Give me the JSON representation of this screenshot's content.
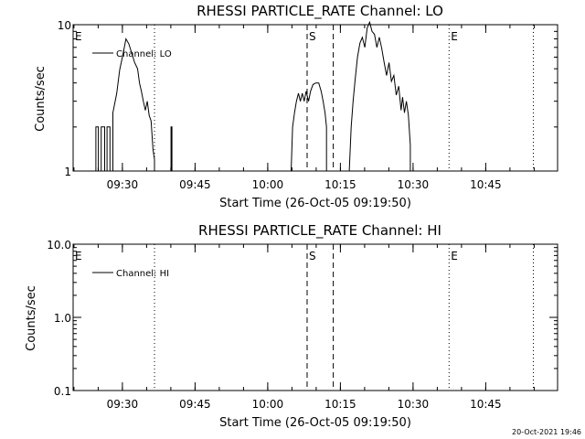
{
  "footer": {
    "timestamp": "20-Oct-2021 19:46"
  },
  "chart_data": [
    {
      "type": "line",
      "title": "RHESSI PARTICLE_RATE Channel: LO",
      "xlabel": "Start Time (26-Oct-05 09:19:50)",
      "ylabel": "Counts/sec",
      "y_scale": "log",
      "ylim": [
        1,
        10
      ],
      "y_ticks": [
        1,
        10
      ],
      "y_tick_labels": [
        "1",
        "10"
      ],
      "x_unit": "minutes after 09:19:50",
      "xlim": [
        0,
        100
      ],
      "x_ticks": [
        10.17,
        25.17,
        40.17,
        55.17,
        70.17,
        85.17
      ],
      "x_tick_labels": [
        "09:30",
        "09:45",
        "10:00",
        "10:15",
        "10:30",
        "10:45"
      ],
      "legend": {
        "entries": [
          "Channel: LO"
        ],
        "placement": "top-left"
      },
      "markers": [
        {
          "label": "E",
          "x": 0,
          "style": "dotted"
        },
        {
          "label": "",
          "x": 16.8,
          "style": "dotted"
        },
        {
          "label": "S",
          "x": 48.3,
          "style": "dashed"
        },
        {
          "label": "",
          "x": 53.7,
          "style": "dashed"
        },
        {
          "label": "E",
          "x": 77.6,
          "style": "dotted"
        },
        {
          "label": "",
          "x": 95.0,
          "style": "dotted"
        }
      ],
      "series": [
        {
          "name": "Channel: LO",
          "x": [
            4.7,
            4.7,
            5.2,
            5.2,
            5.8,
            5.8,
            6.5,
            6.5,
            7.0,
            7.0,
            7.6,
            7.6,
            8.2,
            8.2,
            9.0,
            9.6,
            10.3,
            10.9,
            11.5,
            12.1,
            12.7,
            13.3,
            13.7,
            14.1,
            14.5,
            14.9,
            15.3,
            15.7,
            16.1,
            16.5,
            16.8,
            16.8,
            20.2,
            20.2,
            20.4,
            20.4,
            45.0,
            45.3,
            45.7,
            46.1,
            46.5,
            46.9,
            47.3,
            47.7,
            48.1,
            48.6,
            49.0,
            49.5,
            50.1,
            50.7,
            51.2,
            51.6,
            52.0,
            52.3,
            52.3,
            57.0,
            57.4,
            57.8,
            58.2,
            58.7,
            59.2,
            59.7,
            60.2,
            60.7,
            61.2,
            61.7,
            62.2,
            62.7,
            63.2,
            63.7,
            64.2,
            64.7,
            65.2,
            65.7,
            66.2,
            66.7,
            67.2,
            67.7,
            68.0,
            68.4,
            68.8,
            69.2,
            69.6,
            69.6
          ],
          "values": [
            1,
            2,
            2,
            1,
            1,
            2,
            2,
            1,
            1,
            2,
            2,
            1,
            1,
            2.5,
            3.4,
            4.9,
            6.3,
            8.0,
            7.4,
            6.4,
            5.5,
            5.0,
            4.0,
            3.5,
            3.0,
            2.6,
            3.0,
            2.4,
            2.2,
            1.4,
            1.2,
            1,
            1,
            2,
            2,
            1,
            1,
            2.0,
            2.5,
            3.0,
            3.4,
            3.0,
            3.4,
            3.0,
            3.5,
            3.0,
            3.5,
            3.9,
            4.0,
            4.0,
            3.5,
            3.0,
            2.5,
            2.0,
            1,
            1,
            2.0,
            3.0,
            4.2,
            6.0,
            7.5,
            8.2,
            7.0,
            9.5,
            10.4,
            9.0,
            8.6,
            7.0,
            8.2,
            6.9,
            5.5,
            4.5,
            5.5,
            4.1,
            4.5,
            3.3,
            3.8,
            2.6,
            3.2,
            2.5,
            3.0,
            2.4,
            1.5,
            1
          ]
        }
      ]
    },
    {
      "type": "line",
      "title": "RHESSI PARTICLE_RATE Channel: HI",
      "xlabel": "Start Time (26-Oct-05 09:19:50)",
      "ylabel": "Counts/sec",
      "y_scale": "log",
      "ylim": [
        0.1,
        10
      ],
      "y_ticks": [
        0.1,
        1,
        10
      ],
      "y_tick_labels": [
        "0.1",
        "1.0",
        "10.0"
      ],
      "x_unit": "minutes after 09:19:50",
      "xlim": [
        0,
        100
      ],
      "x_ticks": [
        10.17,
        25.17,
        40.17,
        55.17,
        70.17,
        85.17
      ],
      "x_tick_labels": [
        "09:30",
        "09:45",
        "10:00",
        "10:15",
        "10:30",
        "10:45"
      ],
      "legend": {
        "entries": [
          "Channel: HI"
        ],
        "placement": "top-left"
      },
      "markers": [
        {
          "label": "E",
          "x": 0,
          "style": "dotted"
        },
        {
          "label": "",
          "x": 16.8,
          "style": "dotted"
        },
        {
          "label": "S",
          "x": 48.3,
          "style": "dashed"
        },
        {
          "label": "",
          "x": 53.7,
          "style": "dashed"
        },
        {
          "label": "E",
          "x": 77.6,
          "style": "dotted"
        },
        {
          "label": "",
          "x": 95.0,
          "style": "dotted"
        }
      ],
      "series": [
        {
          "name": "Channel: HI",
          "x": [],
          "values": []
        }
      ]
    }
  ]
}
